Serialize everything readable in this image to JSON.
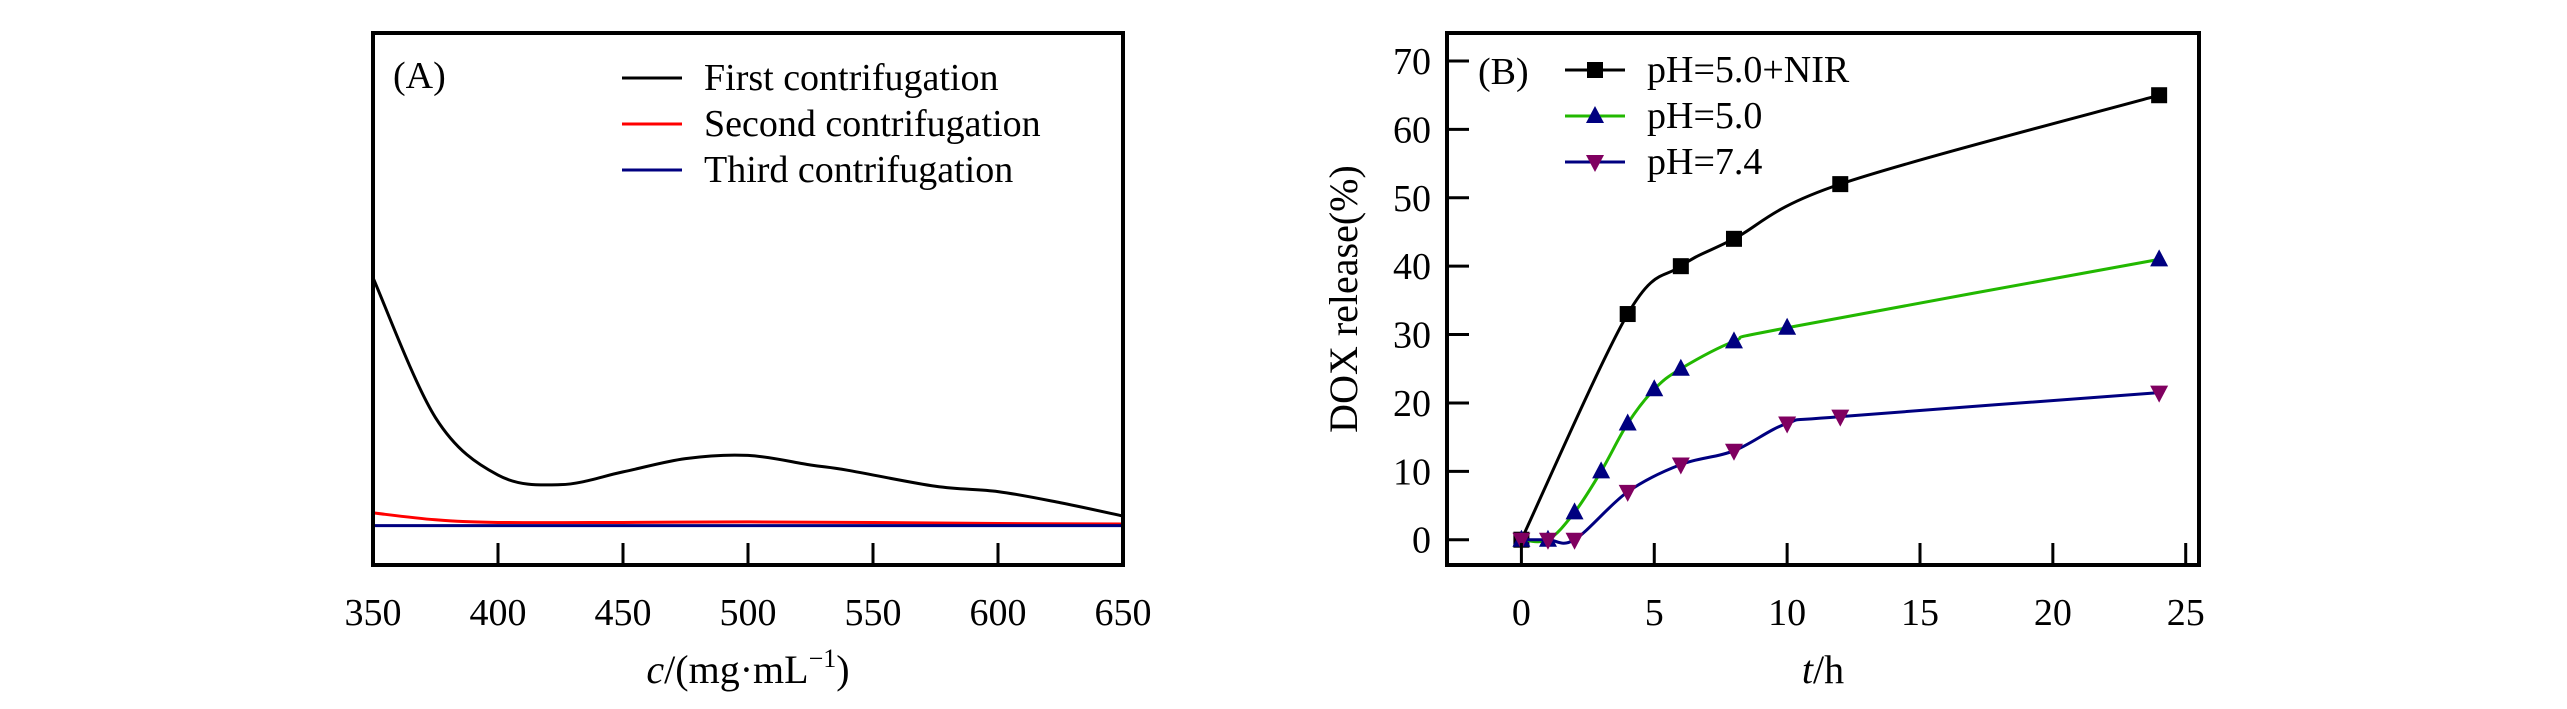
{
  "chart_data": [
    {
      "type": "line",
      "panel_label": "(A)",
      "xlabel_italic": "c",
      "xlabel_rest": "/(mg·mL",
      "xlabel_sup": "−1",
      "xlabel_close": ")",
      "xlim": [
        350,
        650
      ],
      "ylim": [
        0,
        100
      ],
      "y_ticks_shown": false,
      "x_ticks": [
        350,
        400,
        450,
        500,
        550,
        600,
        650
      ],
      "grid": false,
      "legend_position": "top-right",
      "series": [
        {
          "name": "First contrifugation",
          "color": "#000000",
          "x": [
            350,
            375,
            400,
            425,
            450,
            475,
            500,
            525,
            540,
            575,
            600,
            625,
            650
          ],
          "y": [
            54,
            27.7,
            16.9,
            15.1,
            17.5,
            20,
            20.6,
            18.8,
            17.8,
            14.8,
            13.8,
            11.7,
            9.2
          ]
        },
        {
          "name": "Second contrifugation",
          "color": "#ff0000",
          "x": [
            350,
            375,
            400,
            450,
            500,
            550,
            600,
            650
          ],
          "y": [
            9.8,
            8.5,
            8.0,
            8.0,
            8.1,
            8.0,
            7.8,
            7.7
          ]
        },
        {
          "name": "Third contrifugation",
          "color": "#000080",
          "x": [
            350,
            650
          ],
          "y": [
            7.4,
            7.4
          ]
        }
      ]
    },
    {
      "type": "line",
      "panel_label": "(B)",
      "ylabel": "DOX release(%)",
      "xlabel_italic": "t",
      "xlabel_rest": "/h",
      "xlim": [
        -2.8,
        25.5
      ],
      "ylim": [
        -3.7,
        74.1
      ],
      "x_ticks": [
        0,
        5,
        10,
        15,
        20,
        25
      ],
      "y_ticks": [
        0,
        10,
        20,
        30,
        40,
        50,
        60,
        70
      ],
      "grid": false,
      "legend_position": "top-left",
      "series": [
        {
          "name": "pH=5.0+NIR",
          "color": "#000000",
          "marker": "square",
          "marker_color": "#000000",
          "x": [
            0,
            4,
            6,
            8,
            12,
            24
          ],
          "y": [
            0,
            33,
            40,
            44,
            52,
            65
          ]
        },
        {
          "name": "pH=5.0",
          "color": "#22b800",
          "marker": "triangle-up",
          "marker_color": "#000080",
          "x": [
            0,
            1,
            2,
            3,
            4,
            5,
            6,
            8,
            10,
            24
          ],
          "y": [
            0,
            0,
            4,
            10,
            17,
            22,
            25,
            29,
            31,
            41
          ]
        },
        {
          "name": "pH=7.4",
          "color": "#000080",
          "marker": "triangle-down",
          "marker_color": "#800060",
          "x": [
            0,
            1,
            2,
            4,
            6,
            8,
            10,
            12,
            24
          ],
          "y": [
            0,
            0,
            0,
            7,
            11,
            13,
            17,
            18,
            21.5
          ]
        }
      ]
    }
  ]
}
